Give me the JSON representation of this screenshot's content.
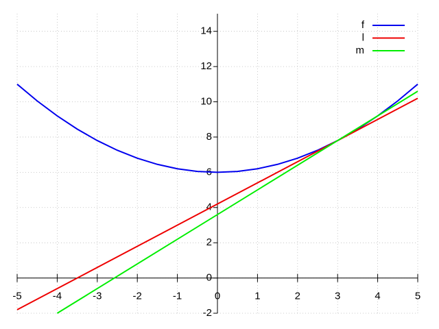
{
  "chart_data": {
    "type": "line",
    "xlim": [
      -5,
      5
    ],
    "ylim": [
      -2,
      15
    ],
    "xticks": [
      -5,
      -4,
      -3,
      -2,
      -1,
      0,
      1,
      2,
      3,
      4,
      5
    ],
    "yticks": [
      -2,
      0,
      2,
      4,
      6,
      8,
      10,
      12,
      14
    ],
    "grid": true,
    "legend": "top-right",
    "series": [
      {
        "name": "f",
        "color": "#0000ee",
        "x": [
          -5,
          -4.5,
          -4,
          -3.5,
          -3,
          -2.5,
          -2,
          -1.5,
          -1,
          -0.5,
          0,
          0.5,
          1,
          1.5,
          2,
          2.5,
          3,
          3.5,
          4,
          4.5,
          5
        ],
        "values": [
          11,
          10.05,
          9.2,
          8.45,
          7.8,
          7.25,
          6.8,
          6.45,
          6.2,
          6.05,
          6,
          6.05,
          6.2,
          6.45,
          6.8,
          7.25,
          7.8,
          8.45,
          9.2,
          10.05,
          11
        ]
      },
      {
        "name": "l",
        "color": "#ee0000",
        "x": [
          -5,
          5
        ],
        "values": [
          -1.8,
          10.2
        ]
      },
      {
        "name": "m",
        "color": "#00ee00",
        "x": [
          -4,
          5
        ],
        "values": [
          -2,
          10.6
        ]
      }
    ]
  }
}
